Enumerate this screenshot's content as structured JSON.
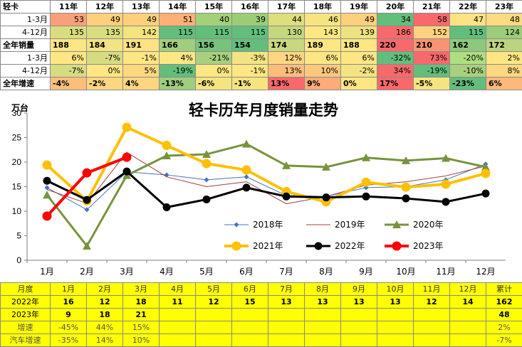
{
  "top_table": {
    "corner": "轻卡",
    "years": [
      "11年",
      "12年",
      "13年",
      "14年",
      "15年",
      "16年",
      "17年",
      "18年",
      "19年",
      "20年",
      "21年",
      "22年",
      "23年"
    ],
    "rows": [
      {
        "label": "1-3月",
        "bold": false,
        "cells": [
          {
            "v": "53",
            "c": "#f8a07a"
          },
          {
            "v": "49",
            "c": "#fed07c"
          },
          {
            "v": "49",
            "c": "#fed07c"
          },
          {
            "v": "51",
            "c": "#fbb077"
          },
          {
            "v": "40",
            "c": "#a3d07a"
          },
          {
            "v": "39",
            "c": "#9acd78"
          },
          {
            "v": "44",
            "c": "#ddde7e"
          },
          {
            "v": "46",
            "c": "#f5e480"
          },
          {
            "v": "49",
            "c": "#fed07c"
          },
          {
            "v": "34",
            "c": "#63be7b"
          },
          {
            "v": "58",
            "c": "#f8696b"
          },
          {
            "v": "47",
            "c": "#fee283"
          },
          {
            "v": "48",
            "c": "#feda80"
          }
        ]
      },
      {
        "label": "4-12月",
        "bold": false,
        "cells": [
          {
            "v": "135",
            "c": "#d9dd7f"
          },
          {
            "v": "135",
            "c": "#d9dd7f"
          },
          {
            "v": "142",
            "c": "#f4e480"
          },
          {
            "v": "115",
            "c": "#63be7b"
          },
          {
            "v": "115",
            "c": "#63be7b"
          },
          {
            "v": "115",
            "c": "#63be7b"
          },
          {
            "v": "130",
            "c": "#c4d77e"
          },
          {
            "v": "143",
            "c": "#fee683"
          },
          {
            "v": "139",
            "c": "#ece281"
          },
          {
            "v": "186",
            "c": "#f8696b"
          },
          {
            "v": "152",
            "c": "#fdd27f"
          },
          {
            "v": "115",
            "c": "#63be7b"
          },
          {
            "v": "124",
            "c": "#9dcd7b"
          }
        ]
      },
      {
        "label": "全年销量",
        "bold": true,
        "cells": [
          {
            "v": "188",
            "c": "#fee683"
          },
          {
            "v": "184",
            "c": "#f3e382"
          },
          {
            "v": "191",
            "c": "#fee283"
          },
          {
            "v": "166",
            "c": "#9fce7d"
          },
          {
            "v": "156",
            "c": "#77c37c"
          },
          {
            "v": "154",
            "c": "#63be7b"
          },
          {
            "v": "174",
            "c": "#c9d880"
          },
          {
            "v": "189",
            "c": "#fee683"
          },
          {
            "v": "188",
            "c": "#fee683"
          },
          {
            "v": "220",
            "c": "#f8696b"
          },
          {
            "v": "210",
            "c": "#fa9373"
          },
          {
            "v": "162",
            "c": "#8dc97c"
          },
          {
            "v": "172",
            "c": "#bcd47f"
          }
        ]
      },
      {
        "label": "1-3月",
        "bold": false,
        "cells": [
          {
            "v": "6%",
            "c": "#fee683"
          },
          {
            "v": "-7%",
            "c": "#d8dc81"
          },
          {
            "v": "-1%",
            "c": "#fee683"
          },
          {
            "v": "4%",
            "c": "#fee683"
          },
          {
            "v": "-21%",
            "c": "#a9d07e"
          },
          {
            "v": "-3%",
            "c": "#f3e382"
          },
          {
            "v": "12%",
            "c": "#fed680"
          },
          {
            "v": "6%",
            "c": "#fee683"
          },
          {
            "v": "6%",
            "c": "#fee683"
          },
          {
            "v": "-32%",
            "c": "#63be7b"
          },
          {
            "v": "73%",
            "c": "#f8696b"
          },
          {
            "v": "-20%",
            "c": "#addf80"
          },
          {
            "v": "2%",
            "c": "#fee683"
          }
        ]
      },
      {
        "label": "4-12月",
        "bold": false,
        "cells": [
          {
            "v": "-7%",
            "c": "#d6dc81"
          },
          {
            "v": "0%",
            "c": "#fee683"
          },
          {
            "v": "5%",
            "c": "#fed880"
          },
          {
            "v": "-19%",
            "c": "#63be7b"
          },
          {
            "v": "0%",
            "c": "#fee683"
          },
          {
            "v": "-1%",
            "c": "#fee683"
          },
          {
            "v": "13%",
            "c": "#fcbd7b"
          },
          {
            "v": "10%",
            "c": "#fdc87d"
          },
          {
            "v": "-2%",
            "c": "#f3e382"
          },
          {
            "v": "34%",
            "c": "#f8696b"
          },
          {
            "v": "-19%",
            "c": "#63be7b"
          },
          {
            "v": "-10%",
            "c": "#a9d07e"
          },
          {
            "v": "8%",
            "c": "#fed880"
          }
        ]
      },
      {
        "label": "全年增速",
        "bold": true,
        "cells": [
          {
            "v": "-4%",
            "c": "#fcbf7b"
          },
          {
            "v": "-2%",
            "c": "#fed680"
          },
          {
            "v": "4%",
            "c": "#fed680"
          },
          {
            "v": "-13%",
            "c": "#9fce7d"
          },
          {
            "v": "-6%",
            "c": "#f5e480"
          },
          {
            "v": "-1%",
            "c": "#f5e480"
          },
          {
            "v": "13%",
            "c": "#f8696b"
          },
          {
            "v": "9%",
            "c": "#fcab79"
          },
          {
            "v": "0%",
            "c": "#fee683"
          },
          {
            "v": "17%",
            "c": "#f8696b"
          },
          {
            "v": "-5%",
            "c": "#f5e480"
          },
          {
            "v": "-23%",
            "c": "#63be7b"
          },
          {
            "v": "6%",
            "c": "#fcb979"
          }
        ]
      }
    ]
  },
  "chart_data": {
    "type": "line",
    "title": "轻卡历年月度销量走势",
    "ylabel": "万台",
    "ylim": [
      0,
      30
    ],
    "yticks": [
      0,
      5,
      10,
      15,
      20,
      25,
      30
    ],
    "categories": [
      "1月",
      "2月",
      "3月",
      "4月",
      "5月",
      "6月",
      "7月",
      "8月",
      "9月",
      "10月",
      "11月",
      "12月"
    ],
    "legend_position": "bottom",
    "series": [
      {
        "name": "2018年",
        "color": "#4472c4",
        "width": 1,
        "marker": "diamond",
        "values": [
          14.8,
          10.3,
          18.0,
          17.4,
          16.4,
          17.0,
          13.2,
          13.0,
          14.8,
          15.0,
          16.4,
          19.6
        ]
      },
      {
        "name": "2019年",
        "color": "#a04040",
        "width": 1,
        "marker": "none",
        "values": [
          14.4,
          11.6,
          22.0,
          17.0,
          15.0,
          16.0,
          11.5,
          13.0,
          15.3,
          16.0,
          17.2,
          19.2
        ]
      },
      {
        "name": "2020年",
        "color": "#77933c",
        "width": 3,
        "marker": "triangle",
        "values": [
          13.3,
          2.9,
          17.3,
          21.3,
          21.6,
          23.7,
          19.3,
          19.0,
          20.9,
          20.3,
          20.8,
          19.0
        ]
      },
      {
        "name": "2021年",
        "color": "#ffc000",
        "width": 4,
        "marker": "circle",
        "values": [
          19.4,
          12.1,
          27.1,
          23.4,
          19.7,
          18.4,
          14.0,
          11.9,
          15.9,
          14.9,
          15.5,
          17.7
        ]
      },
      {
        "name": "2022年",
        "color": "#000000",
        "width": 3,
        "marker": "circle",
        "values": [
          16.2,
          12.3,
          18.1,
          10.8,
          12.4,
          14.8,
          13.0,
          12.8,
          13.0,
          12.6,
          11.9,
          13.6
        ]
      },
      {
        "name": "2023年",
        "color": "#ff0000",
        "width": 4,
        "marker": "circle",
        "values": [
          9.0,
          17.8,
          21.0,
          null,
          null,
          null,
          null,
          null,
          null,
          null,
          null,
          null
        ]
      }
    ]
  },
  "bottom_table": {
    "headers": [
      "月度",
      "1月",
      "2月",
      "3月",
      "4月",
      "5月",
      "6月",
      "7月",
      "8月",
      "9月",
      "10月",
      "11月",
      "12月",
      "累计"
    ],
    "rows": [
      {
        "label": "2022年",
        "bold": true,
        "cells": [
          "16",
          "12",
          "18",
          "11",
          "12",
          "15",
          "13",
          "13",
          "13",
          "13",
          "12",
          "14",
          "162"
        ]
      },
      {
        "label": "2023年",
        "bold": true,
        "cells": [
          "9",
          "18",
          "21",
          "",
          "",
          "",
          "",
          "",
          "",
          "",
          "",
          "",
          "48"
        ]
      },
      {
        "label": "增速",
        "bold": false,
        "cells": [
          "-45%",
          "44%",
          "15%",
          "",
          "",
          "",
          "",
          "",
          "",
          "",
          "",
          "",
          "2%"
        ]
      },
      {
        "label": "汽车增速",
        "bold": false,
        "cells": [
          "-35%",
          "14%",
          "10%",
          "",
          "",
          "",
          "",
          "",
          "",
          "",
          "",
          "",
          "-7%"
        ]
      }
    ]
  }
}
